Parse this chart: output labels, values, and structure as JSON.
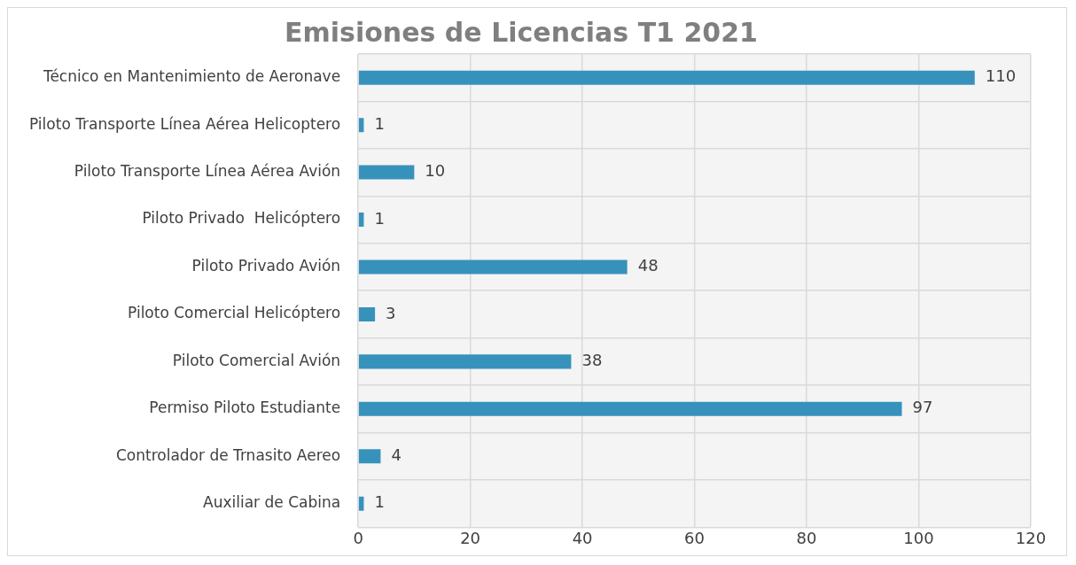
{
  "chart_data": {
    "type": "bar",
    "orientation": "horizontal",
    "title": "Emisiones de Licencias T1 2021",
    "categories": [
      "Técnico en Mantenimiento de Aeronave",
      "Piloto Transporte Línea Aérea Helicoptero",
      "Piloto Transporte Línea Aérea Avión",
      "Piloto Privado  Helicóptero",
      "Piloto Privado Avión",
      "Piloto Comercial Helicóptero",
      "Piloto Comercial Avión",
      "Permiso Piloto Estudiante",
      "Controlador de Trnasito Aereo",
      "Auxiliar de Cabina"
    ],
    "values": [
      110,
      1,
      10,
      1,
      48,
      3,
      38,
      97,
      4,
      1
    ],
    "color": "#3792bb",
    "xlim": [
      0,
      120
    ],
    "xticks": [
      0,
      20,
      40,
      60,
      80,
      100,
      120
    ],
    "grid": true,
    "legend": false,
    "data_labels": true
  }
}
